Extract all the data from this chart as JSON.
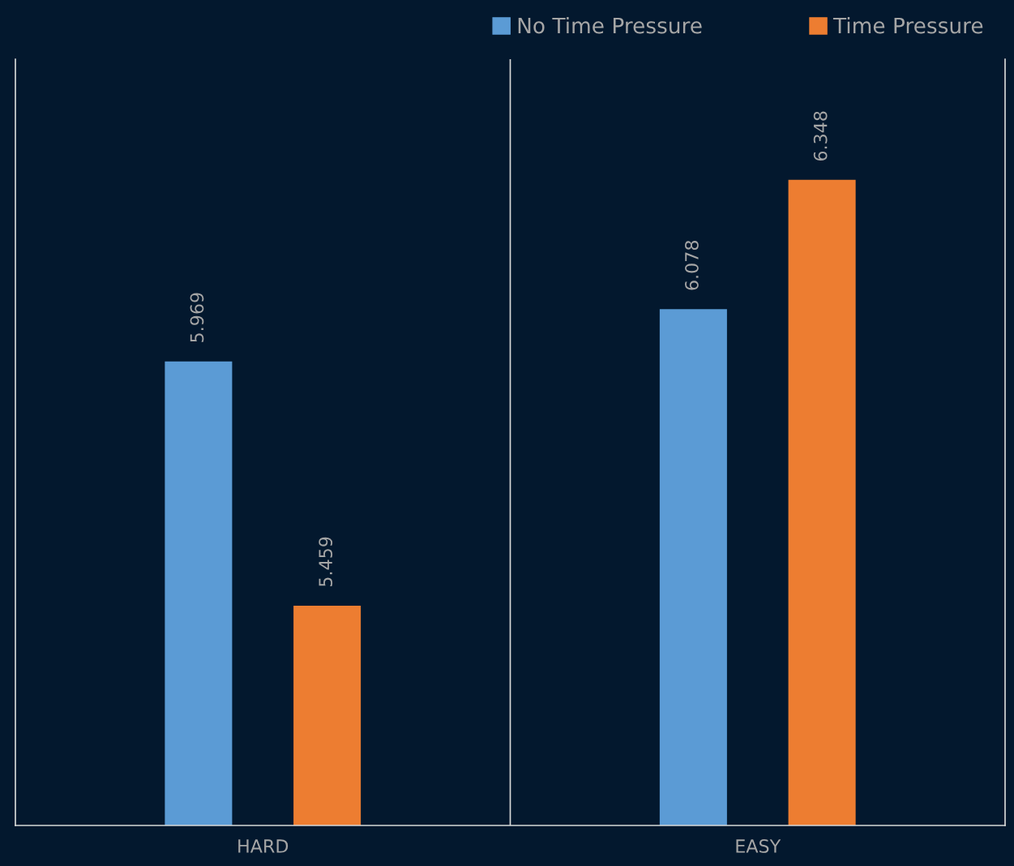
{
  "chart_data": {
    "type": "bar",
    "categories": [
      "HARD",
      "EASY"
    ],
    "series": [
      {
        "name": "No Time Pressure",
        "color": "#5b9bd5",
        "values": [
          5.969,
          6.078
        ]
      },
      {
        "name": "Time Pressure",
        "color": "#ed7d31",
        "values": [
          5.459,
          6.348
        ]
      }
    ],
    "ylim": [
      5,
      6.6
    ],
    "data_labels": true,
    "legend": "top right",
    "grid": false
  }
}
